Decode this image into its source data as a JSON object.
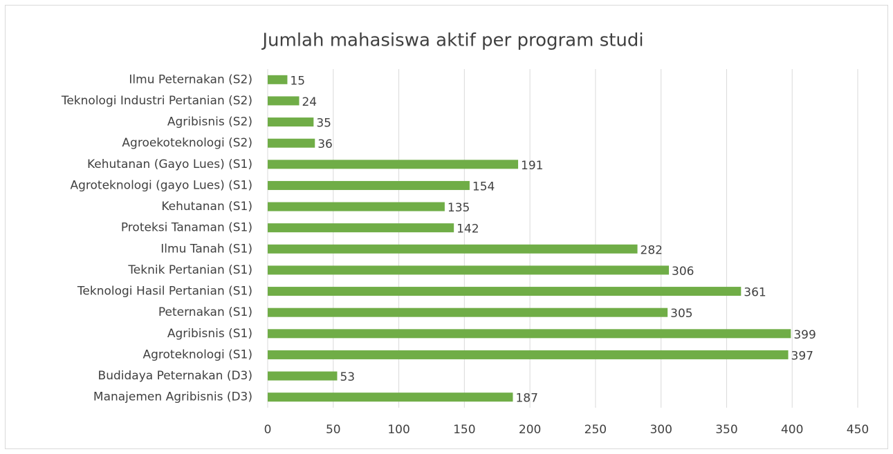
{
  "chart_data": {
    "type": "barh",
    "title": "Jumlah mahasiswa aktif per program studi",
    "categories": [
      "Ilmu Peternakan (S2)",
      "Teknologi Industri Pertanian (S2)",
      "Agribisnis (S2)",
      "Agroekoteknologi (S2)",
      "Kehutanan (Gayo Lues) (S1)",
      "Agroteknologi (gayo Lues) (S1)",
      "Kehutanan (S1)",
      "Proteksi Tanaman (S1)",
      "Ilmu Tanah (S1)",
      "Teknik Pertanian (S1)",
      "Teknologi Hasil Pertanian (S1)",
      "Peternakan (S1)",
      "Agribisnis (S1)",
      "Agroteknologi (S1)",
      "Budidaya Peternakan (D3)",
      "Manajemen Agribisnis (D3)"
    ],
    "values": [
      15,
      24,
      35,
      36,
      191,
      154,
      135,
      142,
      282,
      306,
      361,
      305,
      399,
      397,
      53,
      187
    ],
    "color": "#70ad47",
    "xlim": [
      0,
      450
    ],
    "xticks": [
      0,
      50,
      100,
      150,
      200,
      250,
      300,
      350,
      400,
      450
    ],
    "grid": true
  }
}
